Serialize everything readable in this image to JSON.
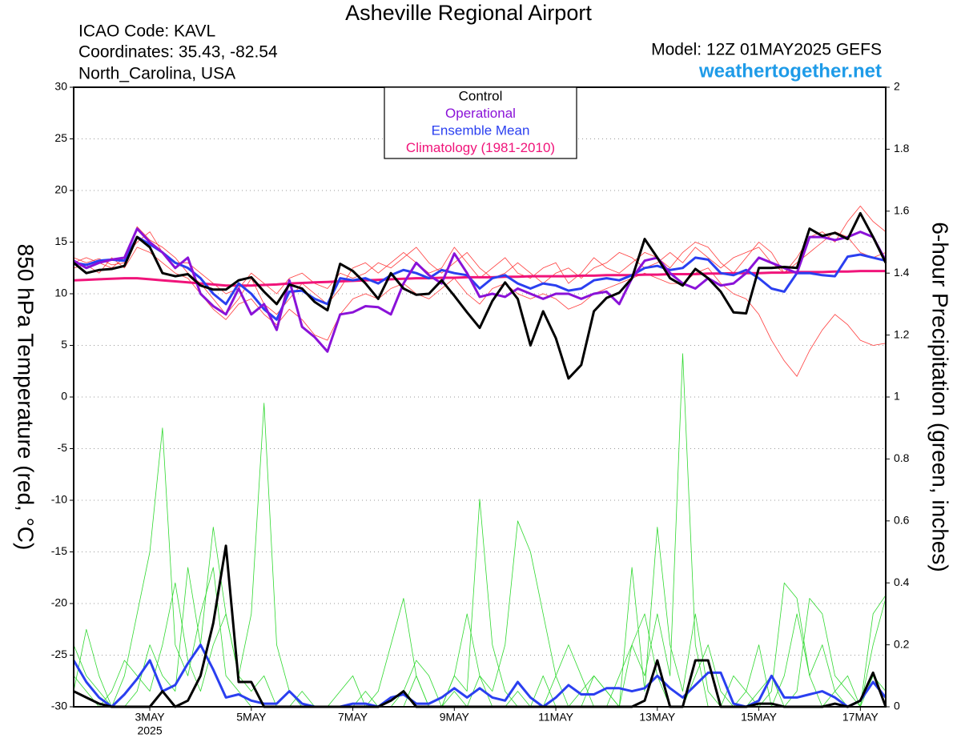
{
  "chart_data": {
    "type": "line",
    "title": "Asheville Regional Airport",
    "info": [
      "ICAO Code: KAVL",
      "Coordinates: 35.43, -82.54",
      "North_Carolina, USA"
    ],
    "model": "Model: 12Z 01MAY2025 GEFS",
    "website": "weathertogether.net",
    "ylabel": "850 hPa Temperature (red, °C)",
    "y2label": "6-hour Precipitation (green, inches)",
    "x_sublabel": "2025",
    "grid": true,
    "xlim": [
      0,
      384
    ],
    "ylim": [
      -30,
      30
    ],
    "yticks": [
      -30,
      -25,
      -20,
      -15,
      -10,
      -5,
      0,
      5,
      10,
      15,
      20,
      25,
      30
    ],
    "y2lim": [
      0,
      2
    ],
    "y2ticks": [
      0,
      0.2,
      0.4,
      0.6,
      0.8,
      1,
      1.2,
      1.4,
      1.6,
      1.8,
      2
    ],
    "xticks": [
      {
        "value": 36,
        "label": "3MAY"
      },
      {
        "value": 84,
        "label": "5MAY"
      },
      {
        "value": 132,
        "label": "7MAY"
      },
      {
        "value": 180,
        "label": "9MAY"
      },
      {
        "value": 228,
        "label": "11MAY"
      },
      {
        "value": 276,
        "label": "13MAY"
      },
      {
        "value": 324,
        "label": "15MAY"
      },
      {
        "value": 372,
        "label": "17MAY"
      }
    ],
    "x": [
      0,
      6,
      12,
      18,
      24,
      30,
      36,
      42,
      48,
      54,
      60,
      66,
      72,
      78,
      84,
      90,
      96,
      102,
      108,
      114,
      120,
      126,
      132,
      138,
      144,
      150,
      156,
      162,
      168,
      174,
      180,
      186,
      192,
      198,
      204,
      210,
      216,
      222,
      228,
      234,
      240,
      246,
      252,
      258,
      264,
      270,
      276,
      282,
      288,
      294,
      300,
      306,
      312,
      318,
      324,
      330,
      336,
      342,
      348,
      354,
      360,
      366,
      372,
      378,
      384
    ],
    "temperature_members": {
      "color": "#ff3b3b",
      "values": [
        [
          13.5,
          13.0,
          13.4,
          12.8,
          13.0,
          16.5,
          15.2,
          14.5,
          13.5,
          12.0,
          11.0,
          9.5,
          8.0,
          9.5,
          11.5,
          9.0,
          8.0,
          9.5,
          11.0,
          10.0,
          9.0,
          10.5,
          12.5,
          13.0,
          12.0,
          13.0,
          14.0,
          13.0,
          12.0,
          12.5,
          14.5,
          13.0,
          11.5,
          12.5,
          13.5,
          12.0,
          11.5,
          12.5,
          13.0,
          11.0,
          12.0,
          13.5,
          12.5,
          12.0,
          13.0,
          14.0,
          13.5,
          12.5,
          14.0,
          15.0,
          14.5,
          13.0,
          12.0,
          13.5,
          15.0,
          14.0,
          12.0,
          13.5,
          15.5,
          16.0,
          15.0,
          17.0,
          18.5,
          17.0,
          16.0
        ],
        [
          12.5,
          12.8,
          12.0,
          13.5,
          12.5,
          14.5,
          14.0,
          13.0,
          12.0,
          11.5,
          10.0,
          8.5,
          7.5,
          9.0,
          9.5,
          8.0,
          7.0,
          8.5,
          7.5,
          6.0,
          5.5,
          8.0,
          9.5,
          10.0,
          9.5,
          10.5,
          11.0,
          10.0,
          9.5,
          10.5,
          11.5,
          10.0,
          9.0,
          10.5,
          11.0,
          10.0,
          9.5,
          10.0,
          9.5,
          8.5,
          9.0,
          10.0,
          10.5,
          11.0,
          11.5,
          12.0,
          11.5,
          11.0,
          11.0,
          12.0,
          12.5,
          11.0,
          10.0,
          9.5,
          8.0,
          5.5,
          3.5,
          2.0,
          4.5,
          6.5,
          8.0,
          7.0,
          5.5,
          5.0,
          5.2
        ],
        [
          13.0,
          13.5,
          13.0,
          12.5,
          13.5,
          15.0,
          16.0,
          14.0,
          13.0,
          13.0,
          12.0,
          11.0,
          10.0,
          10.5,
          12.0,
          11.0,
          10.0,
          11.5,
          12.0,
          11.0,
          10.5,
          12.0,
          11.5,
          12.0,
          13.0,
          12.5,
          13.5,
          14.5,
          13.0,
          12.0,
          13.0,
          14.0,
          12.5,
          11.5,
          12.0,
          13.0,
          12.0,
          11.0,
          12.0,
          12.5,
          11.5,
          12.5,
          13.0,
          14.0,
          13.5,
          12.5,
          13.0,
          14.0,
          13.0,
          14.5,
          13.5,
          12.5,
          13.5,
          14.0,
          14.5,
          13.0,
          12.0,
          13.0,
          14.0,
          15.0,
          16.0,
          15.5,
          14.0,
          13.5,
          14.0
        ]
      ]
    },
    "precip_members": {
      "color": "#2fd82f",
      "axis": "y2",
      "values": [
        [
          0.2,
          0.1,
          0.05,
          0,
          0.1,
          0.3,
          0.5,
          0.9,
          0.2,
          0.1,
          0.3,
          0.45,
          0.1,
          0.05,
          0,
          0,
          0,
          0,
          0,
          0,
          0,
          0,
          0,
          0,
          0.05,
          0.2,
          0.35,
          0.1,
          0,
          0,
          0.1,
          0.3,
          0.1,
          0,
          0,
          0.05,
          0,
          0,
          0.1,
          0.2,
          0.1,
          0,
          0,
          0.1,
          0.2,
          0.3,
          0.1,
          0,
          0,
          0.1,
          0.2,
          0.05,
          0,
          0,
          0.05,
          0.1,
          0,
          0.05,
          0.35,
          0.3,
          0.1,
          0.05,
          0,
          0.2,
          0.35
        ],
        [
          0.1,
          0.05,
          0,
          0.05,
          0.15,
          0.1,
          0.05,
          0.2,
          0.4,
          0.15,
          0.05,
          0.2,
          0.3,
          0.1,
          0.3,
          0.98,
          0.2,
          0.05,
          0,
          0,
          0,
          0,
          0,
          0.05,
          0,
          0,
          0,
          0.1,
          0,
          0,
          0.1,
          0.05,
          0.67,
          0.2,
          0.05,
          0,
          0,
          0.1,
          0,
          0,
          0,
          0.1,
          0.05,
          0,
          0.2,
          0.1,
          0.3,
          0.1,
          1.14,
          0.2,
          0,
          0,
          0,
          0.05,
          0.2,
          0,
          0.1,
          0.3,
          0.1,
          0,
          0.05,
          0,
          0,
          0.1,
          0.05
        ],
        [
          0.05,
          0.25,
          0.1,
          0,
          0,
          0.05,
          0.2,
          0.1,
          0.05,
          0.45,
          0.2,
          0.58,
          0.3,
          0.1,
          0.05,
          0.1,
          0,
          0,
          0.05,
          0,
          0,
          0.05,
          0.1,
          0,
          0,
          0,
          0.05,
          0.15,
          0.1,
          0,
          0.05,
          0,
          0.1,
          0.05,
          0.2,
          0.6,
          0.5,
          0.3,
          0.1,
          0,
          0.05,
          0.1,
          0.05,
          0,
          0.45,
          0.05,
          0.58,
          0.2,
          0.05,
          0.3,
          0.05,
          0,
          0.1,
          0.05,
          0,
          0.05,
          0.4,
          0.35,
          0.1,
          0.2,
          0.05,
          0.1,
          0,
          0.3,
          0.36
        ]
      ]
    },
    "series": [
      {
        "name": "Climatology (1981-2010)",
        "color": "#f0147a",
        "values": [
          11.3,
          11.35,
          11.4,
          11.45,
          11.5,
          11.5,
          11.4,
          11.3,
          11.2,
          11.1,
          11.0,
          10.9,
          10.8,
          10.8,
          10.8,
          10.85,
          10.9,
          11.0,
          11.05,
          11.1,
          11.15,
          11.2,
          11.25,
          11.3,
          11.35,
          11.4,
          11.45,
          11.5,
          11.5,
          11.55,
          11.55,
          11.6,
          11.6,
          11.6,
          11.65,
          11.65,
          11.7,
          11.7,
          11.7,
          11.7,
          11.75,
          11.75,
          11.8,
          11.8,
          11.8,
          11.85,
          11.85,
          11.9,
          11.9,
          11.9,
          11.95,
          11.95,
          12.0,
          12.0,
          12.0,
          12.05,
          12.05,
          12.1,
          12.1,
          12.1,
          12.15,
          12.15,
          12.2,
          12.2,
          12.2
        ]
      },
      {
        "name": "Ensemble Mean",
        "color": "#2a3ff0",
        "values": [
          13.0,
          12.8,
          13.2,
          13.3,
          13.2,
          15.5,
          14.8,
          14.0,
          13.0,
          12.5,
          11.5,
          10.0,
          9.0,
          11.0,
          10.0,
          8.5,
          7.5,
          10.2,
          10.3,
          9.5,
          9.0,
          11.5,
          11.3,
          11.5,
          11.0,
          11.8,
          12.3,
          12.0,
          11.5,
          12.3,
          12.0,
          11.8,
          10.5,
          11.5,
          11.8,
          11.0,
          10.5,
          11.0,
          10.8,
          10.3,
          10.5,
          11.3,
          11.5,
          11.3,
          11.8,
          12.5,
          12.7,
          12.3,
          12.5,
          13.5,
          13.3,
          12.0,
          11.8,
          12.3,
          11.5,
          10.5,
          10.2,
          12.0,
          12.0,
          11.8,
          11.7,
          13.6,
          13.8,
          13.5,
          13.2
        ]
      },
      {
        "name": "Operational",
        "color": "#8a12d8",
        "values": [
          13.2,
          12.5,
          13.0,
          13.3,
          13.5,
          16.3,
          15.0,
          14.0,
          12.5,
          13.5,
          10.0,
          8.8,
          8.0,
          10.5,
          8.0,
          9.0,
          6.5,
          11.3,
          6.8,
          5.8,
          4.4,
          8.0,
          8.2,
          8.8,
          8.7,
          8.0,
          11.0,
          13.0,
          11.8,
          11.0,
          13.9,
          12.0,
          9.7,
          10.0,
          9.7,
          10.5,
          10.0,
          9.5,
          10.0,
          10.0,
          9.5,
          10.0,
          10.2,
          9.0,
          11.5,
          13.2,
          13.5,
          12.0,
          11.0,
          10.5,
          11.5,
          10.8,
          11.0,
          12.0,
          13.5,
          13.0,
          12.5,
          12.0,
          15.5,
          15.5,
          15.2,
          15.5,
          16.0,
          15.5,
          13.2
        ]
      },
      {
        "name": "Control",
        "color": "#000000",
        "values": [
          13.0,
          12.0,
          12.3,
          12.4,
          12.7,
          15.5,
          14.5,
          12.0,
          11.7,
          11.9,
          10.8,
          10.4,
          10.4,
          11.3,
          11.6,
          10.2,
          9.0,
          10.9,
          10.5,
          9.2,
          8.4,
          12.9,
          12.2,
          11.0,
          9.5,
          12.0,
          10.5,
          9.9,
          10.0,
          11.3,
          9.8,
          8.2,
          6.7,
          9.3,
          11.1,
          9.5,
          5.0,
          8.3,
          5.7,
          1.8,
          3.1,
          8.3,
          9.6,
          10.1,
          11.5,
          15.3,
          13.5,
          11.5,
          10.8,
          12.4,
          11.5,
          10.2,
          8.2,
          8.1,
          12.5,
          12.5,
          12.6,
          12.5,
          16.3,
          15.6,
          15.9,
          15.3,
          17.8,
          15.5,
          13.0
        ]
      }
    ],
    "precip_series": [
      {
        "color": "#2a3ff0",
        "axis": "y2",
        "values": [
          0.15,
          0.08,
          0.03,
          0,
          0.04,
          0.09,
          0.15,
          0.05,
          0.07,
          0.14,
          0.2,
          0.12,
          0.03,
          0.04,
          0.02,
          0.01,
          0.01,
          0.05,
          0.01,
          0,
          0,
          0,
          0.01,
          0.01,
          0,
          0.03,
          0.04,
          0.01,
          0.01,
          0.03,
          0.06,
          0.03,
          0.06,
          0.03,
          0.02,
          0.08,
          0.03,
          0,
          0.03,
          0.07,
          0.04,
          0.04,
          0.06,
          0.06,
          0.05,
          0.06,
          0.1,
          0.06,
          0.03,
          0.07,
          0.11,
          0.11,
          0.01,
          0,
          0.02,
          0.1,
          0.03,
          0.03,
          0.04,
          0.05,
          0.03,
          0,
          0.02,
          0.08,
          0.03
        ]
      },
      {
        "color": "#000000",
        "axis": "y2",
        "values": [
          0.05,
          0.03,
          0.01,
          0,
          0,
          0,
          0,
          0.05,
          0,
          0.02,
          0.1,
          0.27,
          0.52,
          0.08,
          0.08,
          0,
          0,
          0,
          0,
          0,
          0,
          0,
          0,
          0,
          0,
          0.02,
          0.05,
          0,
          0,
          0,
          0,
          0,
          0,
          0,
          0,
          0,
          0,
          0,
          0,
          0,
          0,
          0,
          0,
          0,
          0,
          0.02,
          0.15,
          0,
          0,
          0.15,
          0.15,
          0,
          0,
          0,
          0.01,
          0.01,
          0,
          0,
          0,
          0,
          0.01,
          0,
          0.02,
          0.11,
          0
        ]
      }
    ]
  }
}
